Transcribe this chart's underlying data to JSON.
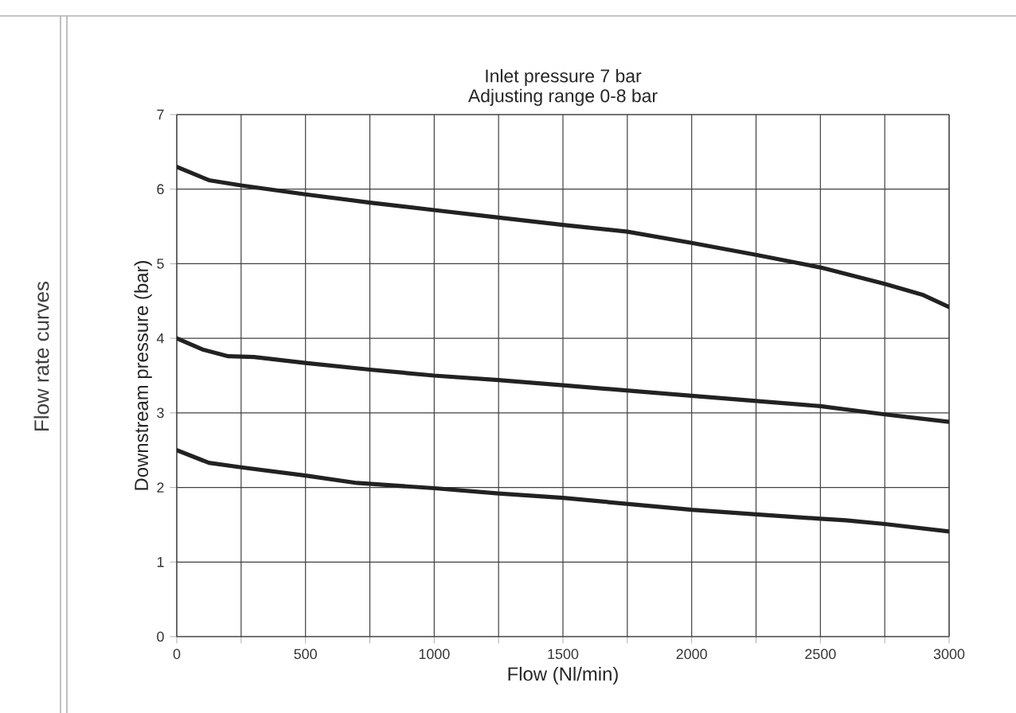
{
  "chart_data": {
    "type": "line",
    "title": "Inlet pressure 7 bar",
    "subtitle": "Adjusting range 0-8 bar",
    "xlabel": "Flow (Nl/min)",
    "ylabel": "Downstream pressure (bar)",
    "annotations": [
      "Flow rate curves"
    ],
    "xlim": [
      0,
      3000
    ],
    "ylim": [
      0,
      7
    ],
    "xticks": [
      0,
      {
        "value": 250,
        "label": null
      },
      500,
      {
        "value": 750,
        "label": null
      },
      1000,
      {
        "value": 1250,
        "label": null
      },
      1500,
      {
        "value": 1750,
        "label": null
      },
      2000,
      {
        "value": 2250,
        "label": null
      },
      2500,
      {
        "value": 2750,
        "label": null
      },
      3000
    ],
    "yticks": [
      0,
      1,
      2,
      3,
      4,
      5,
      6,
      7
    ],
    "grid": true,
    "marker": "none",
    "line_style": "solid",
    "series": [
      {
        "color": "#222222",
        "x": [
          0,
          125,
          250,
          500,
          750,
          1000,
          1250,
          1500,
          1750,
          2000,
          2250,
          2500,
          2750,
          2900,
          3000
        ],
        "values": [
          6.3,
          6.12,
          6.05,
          5.93,
          5.82,
          5.72,
          5.62,
          5.52,
          5.43,
          5.28,
          5.12,
          4.95,
          4.73,
          4.58,
          4.42
        ]
      },
      {
        "color": "#222222",
        "x": [
          0,
          100,
          200,
          300,
          500,
          750,
          1000,
          1250,
          1500,
          1750,
          2000,
          2250,
          2500,
          2750,
          3000
        ],
        "values": [
          4.0,
          3.85,
          3.76,
          3.75,
          3.67,
          3.58,
          3.5,
          3.44,
          3.37,
          3.3,
          3.23,
          3.16,
          3.09,
          2.98,
          2.88
        ]
      },
      {
        "color": "#222222",
        "x": [
          0,
          125,
          250,
          500,
          700,
          1000,
          1250,
          1500,
          1750,
          2000,
          2250,
          2500,
          2600,
          2750,
          3000
        ],
        "values": [
          2.5,
          2.33,
          2.27,
          2.16,
          2.06,
          1.99,
          1.92,
          1.86,
          1.78,
          1.7,
          1.64,
          1.58,
          1.56,
          1.51,
          1.41
        ]
      }
    ]
  }
}
